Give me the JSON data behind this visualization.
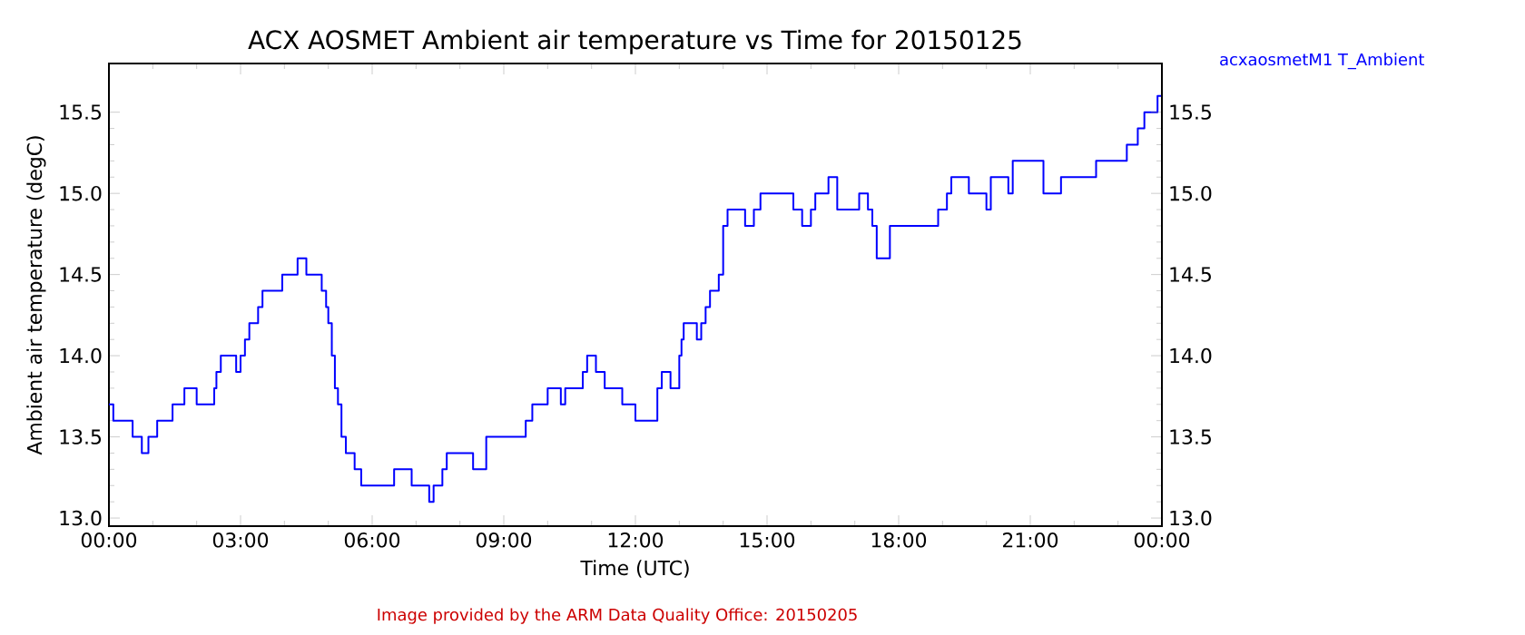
{
  "chart_data": {
    "type": "step",
    "title": "ACX AOSMET Ambient air temperature vs Time for 20150125",
    "xlabel": "Time (UTC)",
    "ylabel": "Ambient air temperature (degC)",
    "annotations": [
      "Image provided by the ARM Data Quality Office: 20150205"
    ],
    "legend": "top right",
    "xlim": [
      0,
      24
    ],
    "xticks": [
      {
        "value": 0,
        "label": "00:00"
      },
      {
        "value": 3,
        "label": "03:00"
      },
      {
        "value": 6,
        "label": "06:00"
      },
      {
        "value": 9,
        "label": "09:00"
      },
      {
        "value": 12,
        "label": "12:00"
      },
      {
        "value": 15,
        "label": "15:00"
      },
      {
        "value": 18,
        "label": "18:00"
      },
      {
        "value": 21,
        "label": "21:00"
      },
      {
        "value": 24,
        "label": "00:00"
      }
    ],
    "ylim": [
      12.95,
      15.8
    ],
    "yticks": [
      {
        "value": 13,
        "label": "13.0"
      },
      13.5,
      {
        "value": 14,
        "label": "14.0"
      },
      14.5,
      {
        "value": 15,
        "label": "15.0"
      },
      15.5
    ],
    "y2lim": [
      12.95,
      15.8
    ],
    "y2ticks": [
      {
        "value": 13,
        "label": "13.0"
      },
      13.5,
      {
        "value": 14,
        "label": "14.0"
      },
      14.5,
      {
        "value": 15,
        "label": "15.0"
      },
      15.5
    ],
    "series": [
      {
        "name": "acxaosmetM1 T_Ambient",
        "color": "#0000ff",
        "x": [
          0,
          0.1,
          0.27,
          0.54,
          0.6,
          0.75,
          0.9,
          1.1,
          1.45,
          1.72,
          2.0,
          2.4,
          2.45,
          2.55,
          2.9,
          3.0,
          3.1,
          3.2,
          3.4,
          3.5,
          3.95,
          4.3,
          4.5,
          4.75,
          4.85,
          4.95,
          5.0,
          5.08,
          5.15,
          5.22,
          5.3,
          5.4,
          5.6,
          5.75,
          6.0,
          6.5,
          6.9,
          7.3,
          7.4,
          7.6,
          7.7,
          8.0,
          8.3,
          8.6,
          9.1,
          9.5,
          9.65,
          10.0,
          10.3,
          10.4,
          10.8,
          10.9,
          11.1,
          11.3,
          11.7,
          12.0,
          12.3,
          12.5,
          12.6,
          12.8,
          13.0,
          13.05,
          13.1,
          13.4,
          13.5,
          13.6,
          13.7,
          13.9,
          14.0,
          14.1,
          14.5,
          14.7,
          14.85,
          15.5,
          15.6,
          15.8,
          16.0,
          16.1,
          16.4,
          16.6,
          17.1,
          17.3,
          17.4,
          17.5,
          17.8,
          18.3,
          18.7,
          18.9,
          19.1,
          19.2,
          19.6,
          20.0,
          20.1,
          20.5,
          20.6,
          21.2,
          21.3,
          21.7,
          22.0,
          22.2,
          22.5,
          22.7,
          23.1,
          23.2,
          23.45,
          23.6,
          23.9,
          24
        ],
        "values": [
          13.7,
          13.6,
          13.6,
          13.5,
          13.5,
          13.4,
          13.5,
          13.6,
          13.7,
          13.8,
          13.7,
          13.8,
          13.9,
          14.0,
          13.9,
          14.0,
          14.1,
          14.2,
          14.3,
          14.4,
          14.5,
          14.6,
          14.5,
          14.5,
          14.4,
          14.3,
          14.2,
          14.0,
          13.8,
          13.7,
          13.5,
          13.4,
          13.3,
          13.2,
          13.2,
          13.3,
          13.2,
          13.1,
          13.2,
          13.3,
          13.4,
          13.4,
          13.3,
          13.5,
          13.5,
          13.6,
          13.7,
          13.8,
          13.7,
          13.8,
          13.9,
          14.0,
          13.9,
          13.8,
          13.7,
          13.6,
          13.6,
          13.8,
          13.9,
          13.8,
          14.0,
          14.1,
          14.2,
          14.1,
          14.2,
          14.3,
          14.4,
          14.5,
          14.8,
          14.9,
          14.8,
          14.9,
          15.0,
          15.0,
          14.9,
          14.8,
          14.9,
          15.0,
          15.1,
          14.9,
          15.0,
          14.9,
          14.8,
          14.6,
          14.8,
          14.8,
          14.8,
          14.9,
          15.0,
          15.1,
          15.0,
          14.9,
          15.1,
          15.0,
          15.2,
          15.2,
          15.0,
          15.1,
          15.1,
          15.1,
          15.2,
          15.2,
          15.2,
          15.3,
          15.4,
          15.5,
          15.6,
          15.6
        ]
      }
    ]
  }
}
